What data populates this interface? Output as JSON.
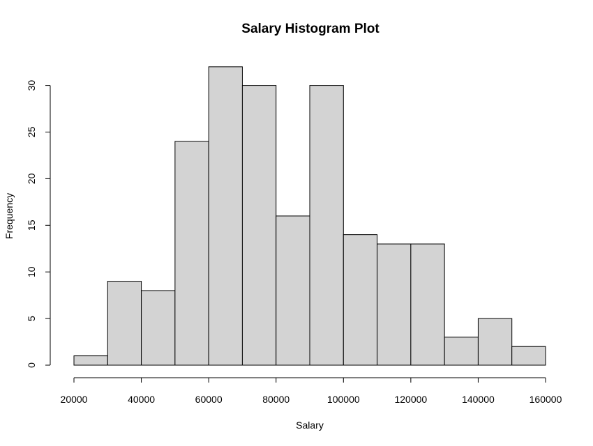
{
  "chart_data": {
    "type": "bar",
    "title": "Salary Histogram Plot",
    "xlabel": "Salary",
    "ylabel": "Frequency",
    "bins": [
      {
        "start": 20000,
        "end": 30000,
        "count": 1
      },
      {
        "start": 30000,
        "end": 40000,
        "count": 9
      },
      {
        "start": 40000,
        "end": 50000,
        "count": 8
      },
      {
        "start": 50000,
        "end": 60000,
        "count": 24
      },
      {
        "start": 60000,
        "end": 70000,
        "count": 32
      },
      {
        "start": 70000,
        "end": 80000,
        "count": 30
      },
      {
        "start": 80000,
        "end": 90000,
        "count": 16
      },
      {
        "start": 90000,
        "end": 100000,
        "count": 30
      },
      {
        "start": 100000,
        "end": 110000,
        "count": 14
      },
      {
        "start": 110000,
        "end": 120000,
        "count": 13
      },
      {
        "start": 120000,
        "end": 130000,
        "count": 13
      },
      {
        "start": 130000,
        "end": 140000,
        "count": 3
      },
      {
        "start": 140000,
        "end": 150000,
        "count": 5
      },
      {
        "start": 150000,
        "end": 160000,
        "count": 2
      }
    ],
    "xlim": [
      20000,
      160000
    ],
    "ylim": [
      0,
      32
    ],
    "x_ticks": [
      20000,
      40000,
      60000,
      80000,
      100000,
      120000,
      140000,
      160000
    ],
    "y_ticks": [
      0,
      5,
      10,
      15,
      20,
      25,
      30
    ],
    "grid": false,
    "colors": {
      "bar_fill": "#d3d3d3",
      "bar_stroke": "#000000"
    }
  }
}
